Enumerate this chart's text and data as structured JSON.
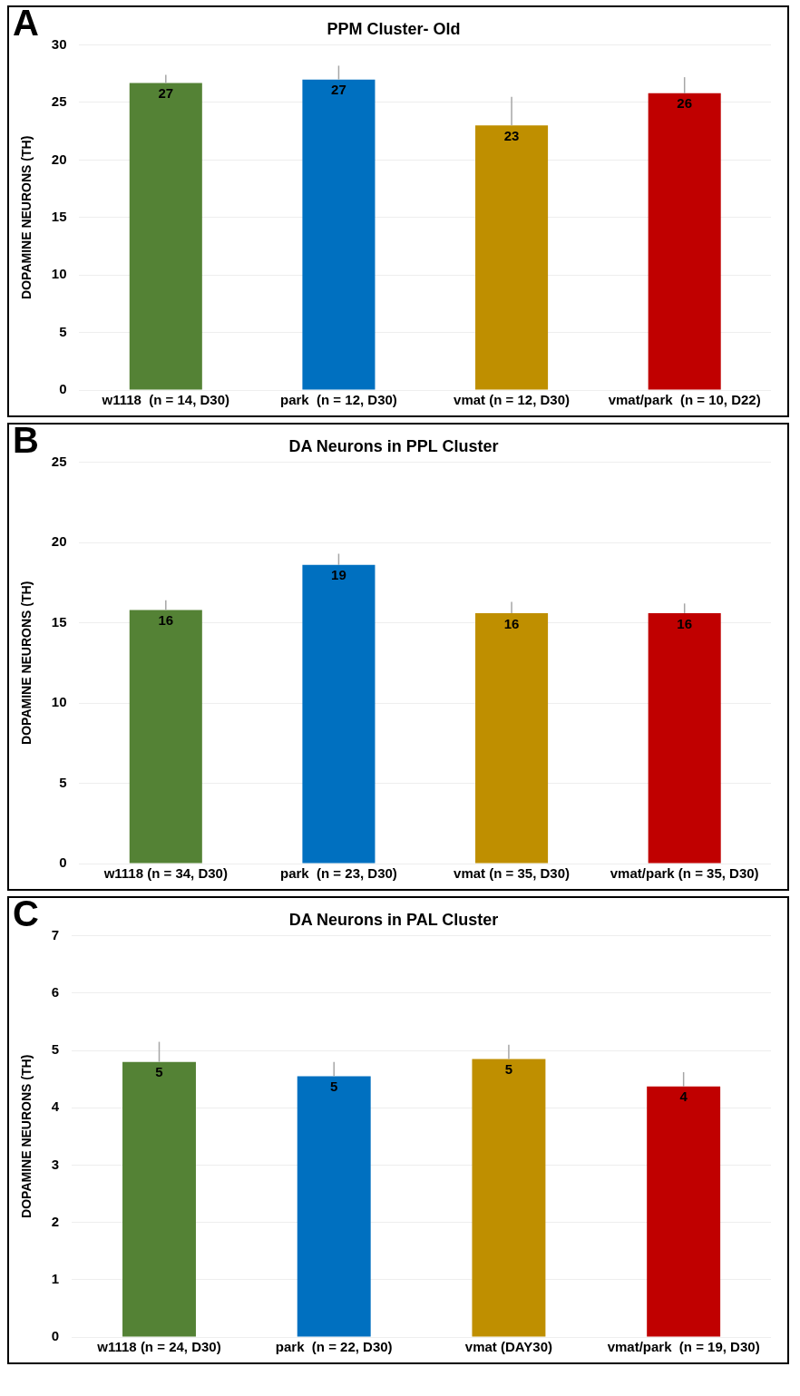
{
  "chart_data": [
    {
      "type": "bar",
      "title": "PPM Cluster- Old",
      "ylabel": "DOPAMINE NEURONS (TH)",
      "annotations": [
        "A"
      ],
      "categories": [
        "w1118  (n = 14, D30)",
        "park  (n = 12, D30)",
        "vmat (n = 12, D30)",
        "vmat/park  (n = 10, D22)"
      ],
      "values": [
        26.7,
        27.0,
        23.0,
        25.8
      ],
      "colors": [
        "#548235",
        "#0070c0",
        "#bf8f00",
        "#c00000"
      ],
      "errors": [
        [
          26.7,
          27.4
        ],
        [
          27.0,
          28.2
        ],
        [
          23.0,
          25.5
        ],
        [
          25.8,
          27.2
        ]
      ],
      "value_labels": [
        "27",
        "27",
        "23",
        "26"
      ],
      "ylim": [
        0,
        30
      ],
      "yticks": [
        0,
        5,
        10,
        15,
        20,
        25,
        30
      ],
      "grid": "y"
    },
    {
      "type": "bar",
      "title": "DA Neurons in PPL Cluster",
      "ylabel": "DOPAMINE NEURONS (TH)",
      "annotations": [
        "B"
      ],
      "categories": [
        "w1118 (n = 34, D30)",
        "park  (n = 23, D30)",
        "vmat (n = 35, D30)",
        "vmat/park (n = 35, D30)"
      ],
      "values": [
        15.8,
        18.6,
        15.6,
        15.6
      ],
      "colors": [
        "#548235",
        "#0070c0",
        "#bf8f00",
        "#c00000"
      ],
      "errors": [
        [
          15.8,
          16.4
        ],
        [
          18.6,
          19.3
        ],
        [
          15.6,
          16.3
        ],
        [
          15.6,
          16.2
        ]
      ],
      "value_labels": [
        "16",
        "19",
        "16",
        "16"
      ],
      "ylim": [
        0,
        25
      ],
      "yticks": [
        0,
        5,
        10,
        15,
        20,
        25
      ],
      "grid": "y"
    },
    {
      "type": "bar",
      "title": "DA Neurons in PAL Cluster",
      "ylabel": "DOPAMINE NEURONS (TH)",
      "annotations": [
        "C"
      ],
      "categories": [
        "w1118 (n = 24, D30)",
        "park  (n = 22, D30)",
        "vmat (DAY30)",
        "vmat/park  (n = 19, D30)"
      ],
      "values": [
        4.8,
        4.55,
        4.85,
        4.37
      ],
      "colors": [
        "#548235",
        "#0070c0",
        "#bf8f00",
        "#c00000"
      ],
      "errors": [
        [
          4.8,
          5.15
        ],
        [
          4.55,
          4.8
        ],
        [
          4.85,
          5.1
        ],
        [
          4.37,
          4.62
        ]
      ],
      "value_labels": [
        "5",
        "5",
        "5",
        "4"
      ],
      "ylim": [
        0,
        7
      ],
      "yticks": [
        0,
        1,
        2,
        3,
        4,
        5,
        6,
        7
      ],
      "grid": "y"
    }
  ]
}
